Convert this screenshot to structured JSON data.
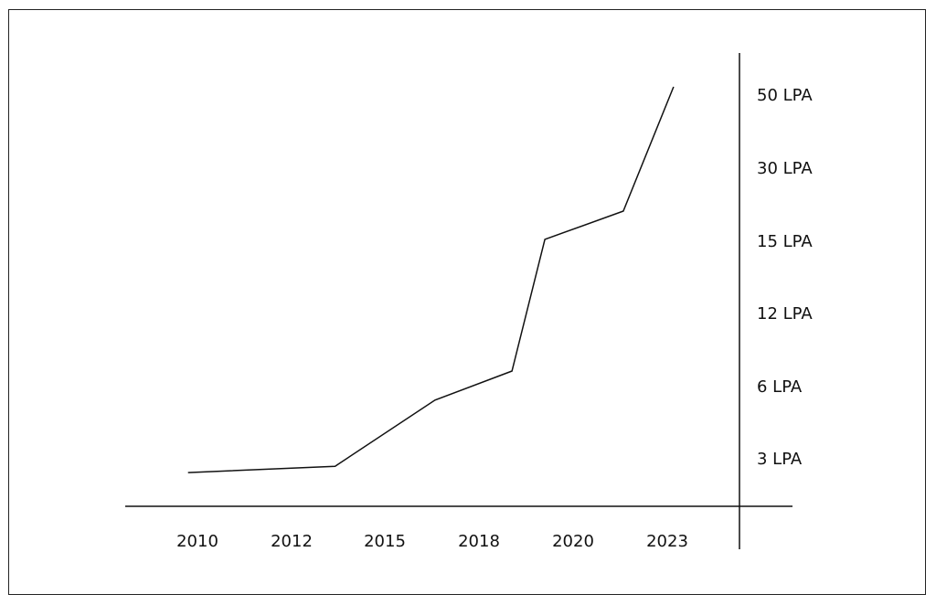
{
  "chart_data": {
    "type": "line",
    "title": "",
    "xlabel": "",
    "ylabel": "",
    "x_ticks": [
      "2010",
      "2012",
      "2015",
      "2018",
      "2020",
      "2023"
    ],
    "y_ticks": [
      "3 LPA",
      "6 LPA",
      "12 LPA",
      "15 LPA",
      "30 LPA",
      "50 LPA"
    ],
    "y_axis_position": "right",
    "grid": false,
    "legend": "none",
    "line_color": "#111111",
    "series": [
      {
        "values": [
          {
            "x": 2009.8,
            "y": 2.3
          },
          {
            "x": 2013.4,
            "y": 2.6
          },
          {
            "x": 2016.6,
            "y": 5.4
          },
          {
            "x": 2018.7,
            "y": 7.2
          },
          {
            "x": 2019.4,
            "y": 15.2
          },
          {
            "x": 2021.6,
            "y": 21
          },
          {
            "x": 2023.2,
            "y": 52
          }
        ]
      }
    ]
  }
}
